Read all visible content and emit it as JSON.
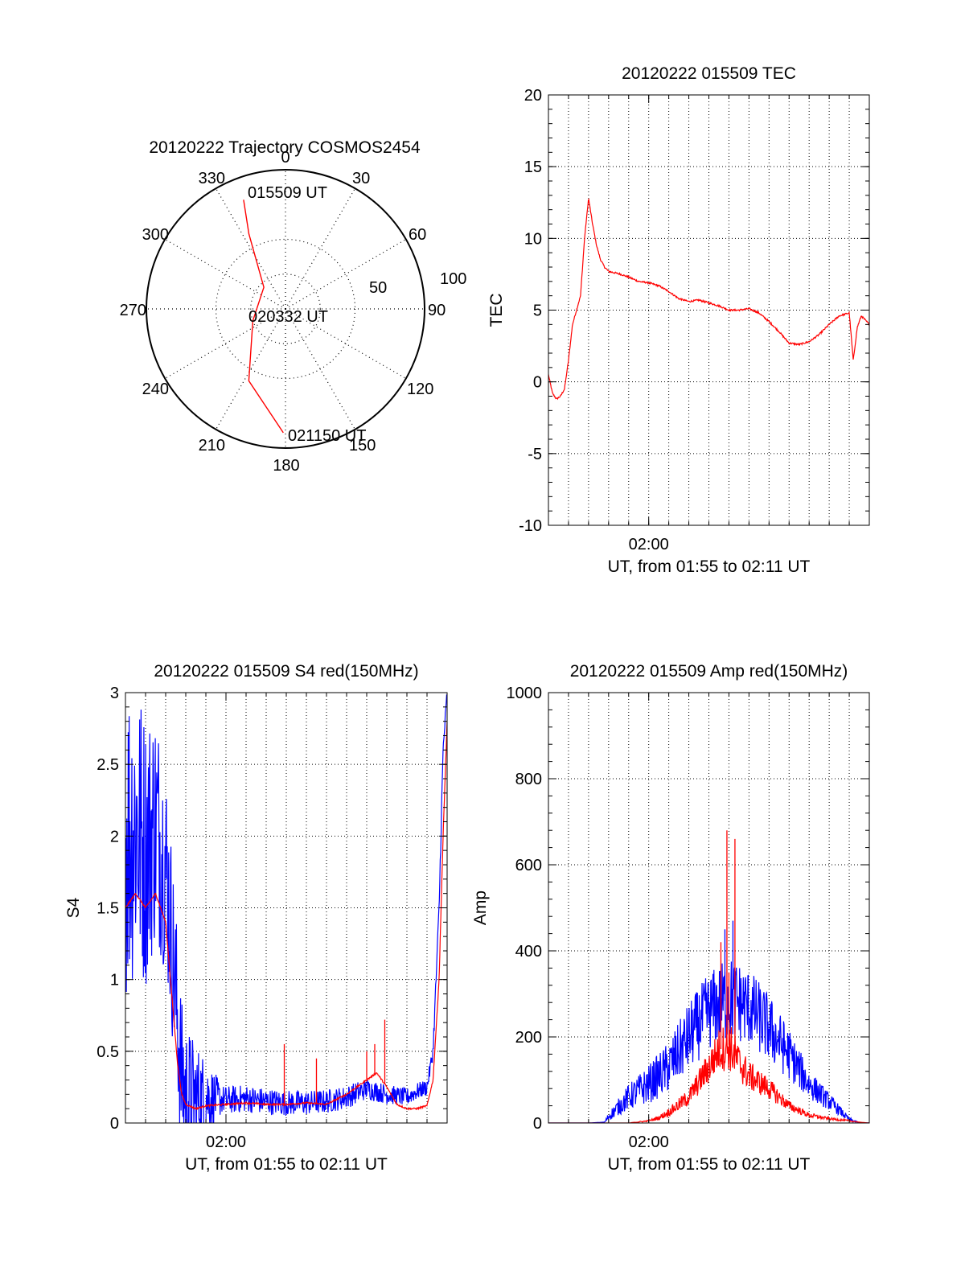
{
  "figure": {
    "background": "#ffffff",
    "colors": {
      "red": "#ff0000",
      "blue": "#0000ff",
      "axis": "#000000",
      "grid": "#000000"
    }
  },
  "polar": {
    "title": "20120222 Trajectory COSMOS2454",
    "azimuth_labels": [
      "0",
      "30",
      "60",
      "90",
      "120",
      "150",
      "180",
      "210",
      "240",
      "270",
      "300",
      "330"
    ],
    "elevation_labels": [
      "50",
      "100"
    ],
    "point_labels": {
      "start": "015509 UT",
      "middle": "020332 UT",
      "end": "021150 UT"
    }
  },
  "chart_data": [
    {
      "id": "polar-trajectory",
      "type": "scatter",
      "title": "20120222 Trajectory COSMOS2454",
      "coordinate_system": "polar",
      "radial_ticks": [
        50,
        100
      ],
      "angular_ticks": [
        0,
        30,
        60,
        90,
        120,
        150,
        180,
        210,
        240,
        270,
        300,
        330
      ],
      "series": [
        {
          "color": "#ff0000",
          "points": [
            {
              "az": 339,
              "r": 84
            },
            {
              "az": 334,
              "r": 60
            },
            {
              "az": 315,
              "r": 22
            },
            {
              "az": 250,
              "r": 25
            },
            {
              "az": 207,
              "r": 58
            },
            {
              "az": 181,
              "r": 89
            }
          ]
        }
      ],
      "annotations": [
        {
          "text": "015509 UT",
          "az": 339,
          "r": 84
        },
        {
          "text": "020332 UT",
          "az": 265,
          "r": 10
        },
        {
          "text": "021150 UT",
          "az": 181,
          "r": 89
        }
      ]
    },
    {
      "id": "tec",
      "type": "line",
      "title": "20120222 015509 TEC",
      "xlabel": "UT, from 01:55 to 02:11 UT",
      "ylabel": "TEC",
      "xlim": [
        0,
        16
      ],
      "ylim": [
        -10,
        20
      ],
      "yticks": [
        -10,
        -5,
        0,
        5,
        10,
        15,
        20
      ],
      "xtick_labels": [
        {
          "x": 5,
          "label": "02:00"
        }
      ],
      "grid": true,
      "series": [
        {
          "color": "#ff0000",
          "x": [
            0.0,
            0.2,
            0.4,
            0.6,
            0.8,
            1.0,
            1.2,
            1.4,
            1.6,
            1.8,
            2.0,
            2.2,
            2.4,
            2.6,
            2.8,
            3.0,
            3.3,
            3.6,
            4.0,
            4.5,
            5.0,
            5.5,
            6.0,
            6.5,
            7.0,
            7.5,
            8.0,
            8.5,
            9.0,
            9.5,
            10.0,
            10.5,
            11.0,
            11.5,
            12.0,
            12.5,
            13.0,
            13.5,
            14.0,
            14.5,
            15.0,
            15.2,
            15.4,
            15.6,
            16.0
          ],
          "values": [
            0.5,
            -0.8,
            -1.2,
            -1.0,
            -0.5,
            1.5,
            4.0,
            5.0,
            6.0,
            10.0,
            12.8,
            11.0,
            9.5,
            8.5,
            8.0,
            7.7,
            7.6,
            7.5,
            7.3,
            7.0,
            6.9,
            6.7,
            6.3,
            5.8,
            5.6,
            5.7,
            5.5,
            5.3,
            5.0,
            5.0,
            5.1,
            4.8,
            4.2,
            3.5,
            2.7,
            2.6,
            2.8,
            3.3,
            4.0,
            4.6,
            4.8,
            1.5,
            3.8,
            4.6,
            4.0
          ]
        }
      ]
    },
    {
      "id": "s4",
      "type": "line",
      "title": "20120222 015509 S4 red(150MHz)",
      "xlabel": "UT, from 01:55 to 02:11 UT",
      "ylabel": "S4",
      "xlim": [
        0,
        16
      ],
      "ylim": [
        0,
        3
      ],
      "yticks": [
        0,
        0.5,
        1,
        1.5,
        2,
        2.5,
        3
      ],
      "ytick_labels": [
        "0",
        "0.5",
        "1",
        "1.5",
        "2",
        "2.5",
        "3"
      ],
      "xtick_labels": [
        {
          "x": 5,
          "label": "02:00"
        }
      ],
      "grid": true,
      "series": [
        {
          "color": "#0000ff",
          "x": [
            0.0,
            0.5,
            1.0,
            1.5,
            2.0,
            2.3,
            2.6,
            2.8,
            3.0,
            3.5,
            4.0,
            5.0,
            6.0,
            7.0,
            8.0,
            9.0,
            10.0,
            11.0,
            12.0,
            13.0,
            14.0,
            14.5,
            15.0,
            15.3,
            15.6,
            15.8,
            16.0
          ],
          "values": [
            2.0,
            2.1,
            1.9,
            2.1,
            1.8,
            1.3,
            0.7,
            0.3,
            0.2,
            0.17,
            0.18,
            0.16,
            0.17,
            0.15,
            0.14,
            0.14,
            0.15,
            0.18,
            0.24,
            0.2,
            0.18,
            0.22,
            0.25,
            0.5,
            1.5,
            2.6,
            3.0
          ],
          "band": [
            1.2,
            0.1,
            0.08,
            0.05
          ]
        },
        {
          "color": "#ff0000",
          "x": [
            0.0,
            0.5,
            1.0,
            1.5,
            2.0,
            2.3,
            2.6,
            2.8,
            3.0,
            3.5,
            4.0,
            5.0,
            6.0,
            7.0,
            8.0,
            9.0,
            10.0,
            11.0,
            12.0,
            12.5,
            13.0,
            13.5,
            14.0,
            14.5,
            15.0,
            15.3,
            15.6,
            15.8,
            16.0
          ],
          "values": [
            1.5,
            1.6,
            1.5,
            1.6,
            1.4,
            0.9,
            0.4,
            0.2,
            0.13,
            0.1,
            0.12,
            0.13,
            0.14,
            0.13,
            0.13,
            0.14,
            0.13,
            0.2,
            0.3,
            0.35,
            0.25,
            0.13,
            0.1,
            0.1,
            0.12,
            0.3,
            1.0,
            2.0,
            2.8
          ],
          "spikes": [
            {
              "x": 7.9,
              "y": 0.55
            },
            {
              "x": 9.5,
              "y": 0.45
            },
            {
              "x": 12.4,
              "y": 0.55
            },
            {
              "x": 12.9,
              "y": 0.72
            },
            {
              "x": 12.0,
              "y": 0.5
            }
          ]
        }
      ]
    },
    {
      "id": "amp",
      "type": "line",
      "title": "20120222 015509 Amp red(150MHz)",
      "xlabel": "UT, from 01:55 to 02:11 UT",
      "ylabel": "Amp",
      "xlim": [
        0,
        16
      ],
      "ylim": [
        0,
        1000
      ],
      "yticks": [
        0,
        200,
        400,
        600,
        800,
        1000
      ],
      "xtick_labels": [
        {
          "x": 5,
          "label": "02:00"
        }
      ],
      "grid": true,
      "series": [
        {
          "color": "#0000ff",
          "x": [
            0.0,
            2.0,
            2.8,
            3.0,
            4.0,
            5.0,
            6.0,
            7.0,
            8.0,
            9.0,
            10.0,
            11.0,
            12.0,
            13.0,
            14.0,
            14.5,
            15.0,
            15.5,
            16.0
          ],
          "values": [
            0,
            0,
            2,
            15,
            60,
            90,
            130,
            200,
            260,
            290,
            270,
            220,
            160,
            90,
            50,
            30,
            8,
            1,
            0
          ],
          "band": [
            0,
            0,
            0,
            10,
            30,
            45,
            60,
            80,
            90,
            100,
            90,
            80,
            60,
            35,
            20,
            12,
            5,
            0,
            0
          ],
          "spikes": [
            {
              "x": 9.2,
              "y": 470
            },
            {
              "x": 8.8,
              "y": 450
            }
          ]
        },
        {
          "color": "#ff0000",
          "x": [
            0.0,
            4.0,
            5.0,
            5.5,
            6.0,
            7.0,
            8.0,
            8.5,
            9.0,
            9.5,
            10.0,
            11.0,
            12.0,
            13.0,
            14.0,
            15.0,
            15.5,
            16.0
          ],
          "values": [
            0,
            0,
            5,
            12,
            25,
            60,
            130,
            170,
            180,
            140,
            110,
            80,
            40,
            18,
            10,
            5,
            2,
            0
          ],
          "band": [
            0,
            0,
            2,
            5,
            10,
            20,
            40,
            50,
            60,
            45,
            35,
            25,
            12,
            6,
            3,
            2,
            0,
            0
          ],
          "spikes": [
            {
              "x": 8.9,
              "y": 680
            },
            {
              "x": 9.3,
              "y": 660
            },
            {
              "x": 8.6,
              "y": 420
            },
            {
              "x": 9.0,
              "y": 350
            }
          ]
        }
      ]
    }
  ]
}
